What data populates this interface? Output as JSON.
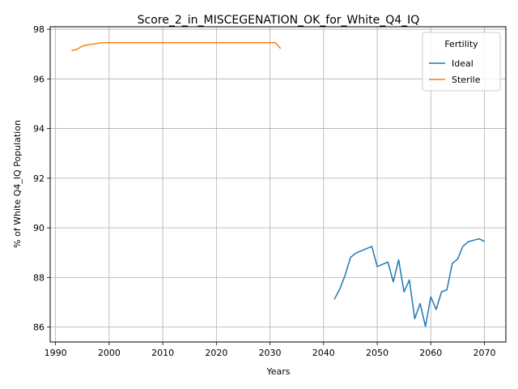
{
  "chart_data": {
    "type": "line",
    "title": "Score_2_in_MISCEGENATION_OK_for_White_Q4_IQ",
    "xlabel": "Years",
    "ylabel": "% of White Q4_IQ Population",
    "xlim": [
      1989,
      2074
    ],
    "ylim": [
      85.4,
      98.1
    ],
    "xticks": [
      1990,
      2000,
      2010,
      2020,
      2030,
      2040,
      2050,
      2060,
      2070
    ],
    "yticks": [
      86,
      88,
      90,
      92,
      94,
      96,
      98
    ],
    "grid": true,
    "legend": {
      "title": "Fertility",
      "position": "top-right"
    },
    "series": [
      {
        "name": "Ideal",
        "color": "#1f77b4",
        "x": [
          2042,
          2043,
          2044,
          2045,
          2046,
          2047,
          2048,
          2049,
          2050,
          2051,
          2052,
          2053,
          2054,
          2055,
          2056,
          2057,
          2058,
          2059,
          2060,
          2061,
          2062,
          2063,
          2064,
          2065,
          2066,
          2067,
          2068,
          2069,
          2070
        ],
        "y": [
          87.12,
          87.52,
          88.08,
          88.8,
          88.98,
          89.07,
          89.16,
          89.25,
          88.44,
          88.53,
          88.62,
          87.82,
          88.71,
          87.42,
          87.9,
          86.34,
          86.95,
          86.03,
          87.22,
          86.71,
          87.42,
          87.5,
          88.56,
          88.74,
          89.26,
          89.44,
          89.5,
          89.56,
          89.45
        ]
      },
      {
        "name": "Sterile",
        "color": "#ff7f0e",
        "x": [
          1993,
          1994,
          1995,
          1996,
          1997,
          1998,
          1999,
          2000,
          2005,
          2010,
          2015,
          2020,
          2025,
          2030,
          2031,
          2032
        ],
        "y": [
          97.14,
          97.19,
          97.32,
          97.37,
          97.4,
          97.44,
          97.46,
          97.46,
          97.46,
          97.46,
          97.46,
          97.46,
          97.46,
          97.46,
          97.46,
          97.22
        ]
      }
    ]
  }
}
